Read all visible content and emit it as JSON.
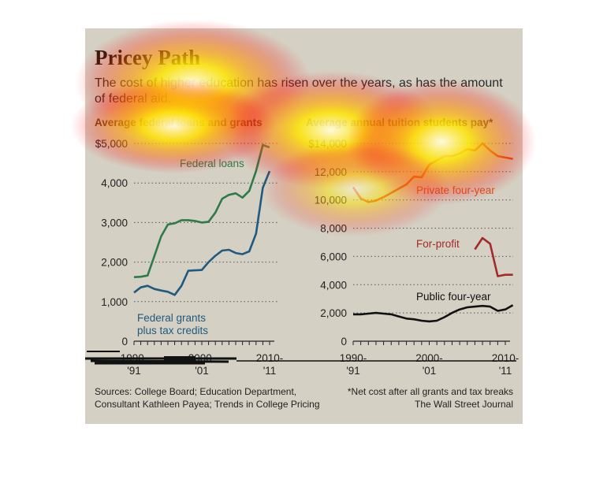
{
  "title": "Pricey Path",
  "subtitle": "The cost of higher education has risen over the years, as has the amount of federal aid.",
  "sources": [
    "Sources: College Board; Education Department,",
    "Consultant Kathleen Payea; Trends in College Pricing"
  ],
  "note": [
    "*Net cost after all grants and tax breaks",
    "The Wall Street Journal"
  ],
  "colors": {
    "background": "#d4d0c3",
    "federal_loans": "#2e7a4a",
    "federal_grants": "#1f5a80",
    "private_four_year": "#d9541a",
    "for_profit": "#a32a2a",
    "public_four_year": "#111111",
    "heatmap_overlay": "#ffd200"
  },
  "chart_data": [
    {
      "type": "line",
      "title": "Average federal loans and grants",
      "xlabel": "",
      "ylabel": "",
      "ylim": [
        0,
        5000
      ],
      "y_ticks": [
        0,
        1000,
        2000,
        3000,
        4000,
        5000
      ],
      "y_tick_labels": [
        "0",
        "1,000",
        "2,000",
        "3,000",
        "4,000",
        "$5,000"
      ],
      "x_ticks": [
        1990,
        2000,
        2010
      ],
      "x_tick_labels": [
        [
          "1990-",
          "'91"
        ],
        [
          "2000-",
          "'01"
        ],
        [
          "2010-",
          "'11"
        ]
      ],
      "x_range": [
        1990,
        2010
      ],
      "grid": true,
      "series": [
        {
          "name": "Federal loans",
          "color": "#2e7a4a",
          "x": [
            1990,
            1991,
            1992,
            1993,
            1994,
            1995,
            1996,
            1997,
            1998,
            1999,
            2000,
            2001,
            2002,
            2003,
            2004,
            2005,
            2006,
            2007,
            2008,
            2009,
            2010
          ],
          "values": [
            1620,
            1630,
            1660,
            2150,
            2650,
            2950,
            2980,
            3060,
            3060,
            3040,
            3000,
            3020,
            3250,
            3600,
            3700,
            3740,
            3630,
            3800,
            4300,
            4960,
            4900
          ]
        },
        {
          "name": "Federal grants plus tax credits",
          "color": "#1f5a80",
          "x": [
            1990,
            1991,
            1992,
            1993,
            1994,
            1995,
            1996,
            1997,
            1998,
            1999,
            2000,
            2001,
            2002,
            2003,
            2004,
            2005,
            2006,
            2007,
            2008,
            2009,
            2010
          ],
          "values": [
            1230,
            1360,
            1400,
            1320,
            1280,
            1250,
            1170,
            1400,
            1780,
            1790,
            1800,
            2000,
            2160,
            2290,
            2310,
            2230,
            2200,
            2270,
            2720,
            3880,
            4300
          ]
        }
      ]
    },
    {
      "type": "line",
      "title": "Average annual tuition students pay*",
      "xlabel": "",
      "ylabel": "",
      "ylim": [
        0,
        14000
      ],
      "y_ticks": [
        0,
        2000,
        4000,
        6000,
        8000,
        10000,
        12000,
        14000
      ],
      "y_tick_labels": [
        "0",
        "2,000",
        "4,000",
        "6,000",
        "8,000",
        "10,000",
        "12,000",
        "$14,000"
      ],
      "x_ticks": [
        1990,
        2000,
        2010
      ],
      "x_tick_labels": [
        [
          "1990-",
          "'91"
        ],
        [
          "2000-",
          "'01"
        ],
        [
          "2010-",
          "'11"
        ]
      ],
      "x_range": [
        1990,
        2010
      ],
      "grid": true,
      "series": [
        {
          "name": "Private four-year",
          "color": "#d9541a",
          "x": [
            1990,
            1991,
            1992,
            1993,
            1994,
            1995,
            1996,
            1997,
            1998,
            1999,
            2000,
            2001,
            2002,
            2003,
            2004,
            2005,
            2006,
            2007,
            2008,
            2009,
            2010,
            2011
          ],
          "values": [
            10900,
            10100,
            9850,
            9950,
            10200,
            10500,
            10800,
            11100,
            11650,
            11600,
            12500,
            12800,
            13100,
            13100,
            13300,
            13600,
            13500,
            14000,
            13500,
            13100,
            13000,
            12900
          ]
        },
        {
          "name": "For-profit",
          "color": "#a32a2a",
          "x": [
            2006,
            2007,
            2008,
            2009,
            2010,
            2011
          ],
          "values": [
            6500,
            7300,
            6900,
            4600,
            4700,
            4700
          ]
        },
        {
          "name": "Public four-year",
          "color": "#111111",
          "x": [
            1990,
            1991,
            1992,
            1993,
            1994,
            1995,
            1996,
            1997,
            1998,
            1999,
            2000,
            2001,
            2002,
            2003,
            2004,
            2005,
            2006,
            2007,
            2008,
            2009,
            2010,
            2011
          ],
          "values": [
            1900,
            1900,
            1950,
            2000,
            1950,
            1900,
            1750,
            1600,
            1550,
            1450,
            1400,
            1450,
            1700,
            2000,
            2250,
            2400,
            2450,
            2500,
            2450,
            2150,
            2250,
            2550
          ]
        }
      ]
    }
  ]
}
